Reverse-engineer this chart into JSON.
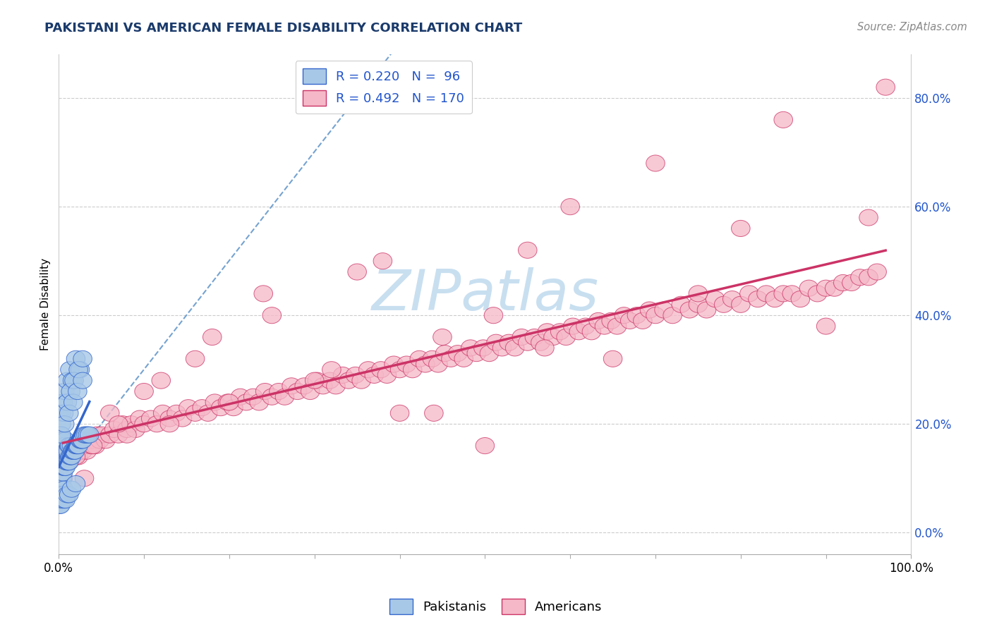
{
  "title": "PAKISTANI VS AMERICAN FEMALE DISABILITY CORRELATION CHART",
  "source": "Source: ZipAtlas.com",
  "ylabel": "Female Disability",
  "xlabel": "",
  "pakistani_R": 0.22,
  "pakistani_N": 96,
  "american_R": 0.492,
  "american_N": 170,
  "pakistani_color": "#a8c8e8",
  "american_color": "#f5b8c8",
  "pakistani_line_color": "#3366cc",
  "american_line_color": "#cc3366",
  "title_color": "#1a3a6b",
  "source_color": "#888888",
  "legend_text_color": "#2255cc",
  "bg_color": "#ffffff",
  "plot_bg_color": "#ffffff",
  "grid_color": "#cccccc",
  "xlim": [
    0,
    1.0
  ],
  "ylim": [
    -0.04,
    0.88
  ],
  "right_yticks": [
    0.0,
    0.2,
    0.4,
    0.6,
    0.8
  ],
  "right_yticklabels": [
    "0.0%",
    "20.0%",
    "40.0%",
    "60.0%",
    "80.0%"
  ],
  "xticklabels_pos": [
    0.0,
    1.0
  ],
  "xticklabels": [
    "0.0%",
    "100.0%"
  ],
  "watermark_text": "ZIPatlas",
  "watermark_color": "#c8dff0",
  "pakistani_x": [
    0.001,
    0.001,
    0.001,
    0.001,
    0.001,
    0.002,
    0.002,
    0.002,
    0.002,
    0.002,
    0.003,
    0.003,
    0.003,
    0.003,
    0.004,
    0.004,
    0.004,
    0.004,
    0.005,
    0.005,
    0.005,
    0.005,
    0.006,
    0.006,
    0.006,
    0.007,
    0.007,
    0.007,
    0.008,
    0.008,
    0.008,
    0.009,
    0.009,
    0.01,
    0.01,
    0.011,
    0.011,
    0.012,
    0.012,
    0.013,
    0.013,
    0.014,
    0.015,
    0.015,
    0.016,
    0.017,
    0.018,
    0.019,
    0.02,
    0.021,
    0.022,
    0.023,
    0.025,
    0.026,
    0.027,
    0.028,
    0.03,
    0.032,
    0.034,
    0.036,
    0.001,
    0.002,
    0.003,
    0.004,
    0.005,
    0.006,
    0.003,
    0.005,
    0.007,
    0.01,
    0.013,
    0.016,
    0.02,
    0.025,
    0.001,
    0.002,
    0.004,
    0.006,
    0.008,
    0.01,
    0.012,
    0.015,
    0.02,
    0.003,
    0.006,
    0.01,
    0.014,
    0.018,
    0.023,
    0.028,
    0.003,
    0.007,
    0.012,
    0.017,
    0.022,
    0.028
  ],
  "pakistani_y": [
    0.1,
    0.12,
    0.14,
    0.16,
    0.18,
    0.08,
    0.11,
    0.13,
    0.15,
    0.17,
    0.09,
    0.12,
    0.14,
    0.16,
    0.1,
    0.13,
    0.15,
    0.17,
    0.11,
    0.13,
    0.15,
    0.17,
    0.12,
    0.14,
    0.16,
    0.12,
    0.14,
    0.16,
    0.12,
    0.14,
    0.17,
    0.13,
    0.15,
    0.13,
    0.15,
    0.13,
    0.15,
    0.13,
    0.16,
    0.14,
    0.16,
    0.14,
    0.14,
    0.16,
    0.15,
    0.15,
    0.15,
    0.15,
    0.16,
    0.16,
    0.16,
    0.16,
    0.17,
    0.17,
    0.17,
    0.17,
    0.18,
    0.18,
    0.18,
    0.18,
    0.06,
    0.07,
    0.07,
    0.07,
    0.07,
    0.08,
    0.22,
    0.24,
    0.26,
    0.28,
    0.3,
    0.28,
    0.32,
    0.3,
    0.05,
    0.05,
    0.06,
    0.06,
    0.06,
    0.07,
    0.07,
    0.08,
    0.09,
    0.2,
    0.22,
    0.24,
    0.26,
    0.28,
    0.3,
    0.32,
    0.18,
    0.2,
    0.22,
    0.24,
    0.26,
    0.28
  ],
  "american_x": [
    0.005,
    0.008,
    0.01,
    0.012,
    0.015,
    0.018,
    0.02,
    0.023,
    0.025,
    0.028,
    0.03,
    0.033,
    0.035,
    0.038,
    0.04,
    0.043,
    0.045,
    0.048,
    0.05,
    0.055,
    0.06,
    0.065,
    0.07,
    0.075,
    0.08,
    0.085,
    0.09,
    0.095,
    0.1,
    0.108,
    0.115,
    0.122,
    0.13,
    0.138,
    0.145,
    0.152,
    0.16,
    0.168,
    0.175,
    0.183,
    0.19,
    0.198,
    0.205,
    0.213,
    0.22,
    0.228,
    0.235,
    0.242,
    0.25,
    0.258,
    0.265,
    0.273,
    0.28,
    0.288,
    0.295,
    0.303,
    0.31,
    0.318,
    0.325,
    0.333,
    0.34,
    0.348,
    0.355,
    0.363,
    0.37,
    0.378,
    0.385,
    0.393,
    0.4,
    0.408,
    0.415,
    0.423,
    0.43,
    0.438,
    0.445,
    0.453,
    0.46,
    0.468,
    0.475,
    0.483,
    0.49,
    0.498,
    0.505,
    0.513,
    0.52,
    0.528,
    0.535,
    0.543,
    0.55,
    0.558,
    0.565,
    0.573,
    0.58,
    0.588,
    0.595,
    0.603,
    0.61,
    0.618,
    0.625,
    0.633,
    0.64,
    0.648,
    0.655,
    0.663,
    0.67,
    0.678,
    0.685,
    0.693,
    0.7,
    0.71,
    0.72,
    0.73,
    0.74,
    0.75,
    0.76,
    0.77,
    0.78,
    0.79,
    0.8,
    0.81,
    0.82,
    0.83,
    0.84,
    0.85,
    0.86,
    0.87,
    0.88,
    0.89,
    0.9,
    0.91,
    0.92,
    0.93,
    0.94,
    0.95,
    0.96,
    0.005,
    0.02,
    0.04,
    0.06,
    0.08,
    0.1,
    0.13,
    0.16,
    0.2,
    0.25,
    0.3,
    0.35,
    0.4,
    0.45,
    0.5,
    0.55,
    0.6,
    0.65,
    0.7,
    0.75,
    0.8,
    0.85,
    0.9,
    0.95,
    0.97,
    0.03,
    0.07,
    0.12,
    0.18,
    0.24,
    0.32,
    0.38,
    0.44,
    0.51,
    0.57
  ],
  "american_y": [
    0.12,
    0.13,
    0.14,
    0.13,
    0.15,
    0.14,
    0.15,
    0.14,
    0.16,
    0.15,
    0.16,
    0.15,
    0.17,
    0.16,
    0.17,
    0.16,
    0.18,
    0.17,
    0.18,
    0.17,
    0.18,
    0.19,
    0.18,
    0.2,
    0.19,
    0.2,
    0.19,
    0.21,
    0.2,
    0.21,
    0.2,
    0.22,
    0.21,
    0.22,
    0.21,
    0.23,
    0.22,
    0.23,
    0.22,
    0.24,
    0.23,
    0.24,
    0.23,
    0.25,
    0.24,
    0.25,
    0.24,
    0.26,
    0.25,
    0.26,
    0.25,
    0.27,
    0.26,
    0.27,
    0.26,
    0.28,
    0.27,
    0.28,
    0.27,
    0.29,
    0.28,
    0.29,
    0.28,
    0.3,
    0.29,
    0.3,
    0.29,
    0.31,
    0.3,
    0.31,
    0.3,
    0.32,
    0.31,
    0.32,
    0.31,
    0.33,
    0.32,
    0.33,
    0.32,
    0.34,
    0.33,
    0.34,
    0.33,
    0.35,
    0.34,
    0.35,
    0.34,
    0.36,
    0.35,
    0.36,
    0.35,
    0.37,
    0.36,
    0.37,
    0.36,
    0.38,
    0.37,
    0.38,
    0.37,
    0.39,
    0.38,
    0.39,
    0.38,
    0.4,
    0.39,
    0.4,
    0.39,
    0.41,
    0.4,
    0.41,
    0.4,
    0.42,
    0.41,
    0.42,
    0.41,
    0.43,
    0.42,
    0.43,
    0.42,
    0.44,
    0.43,
    0.44,
    0.43,
    0.44,
    0.44,
    0.43,
    0.45,
    0.44,
    0.45,
    0.45,
    0.46,
    0.46,
    0.47,
    0.47,
    0.48,
    0.1,
    0.14,
    0.16,
    0.22,
    0.18,
    0.26,
    0.2,
    0.32,
    0.24,
    0.4,
    0.28,
    0.48,
    0.22,
    0.36,
    0.16,
    0.52,
    0.6,
    0.32,
    0.68,
    0.44,
    0.56,
    0.76,
    0.38,
    0.58,
    0.82,
    0.1,
    0.2,
    0.28,
    0.36,
    0.44,
    0.3,
    0.5,
    0.22,
    0.4,
    0.34
  ]
}
